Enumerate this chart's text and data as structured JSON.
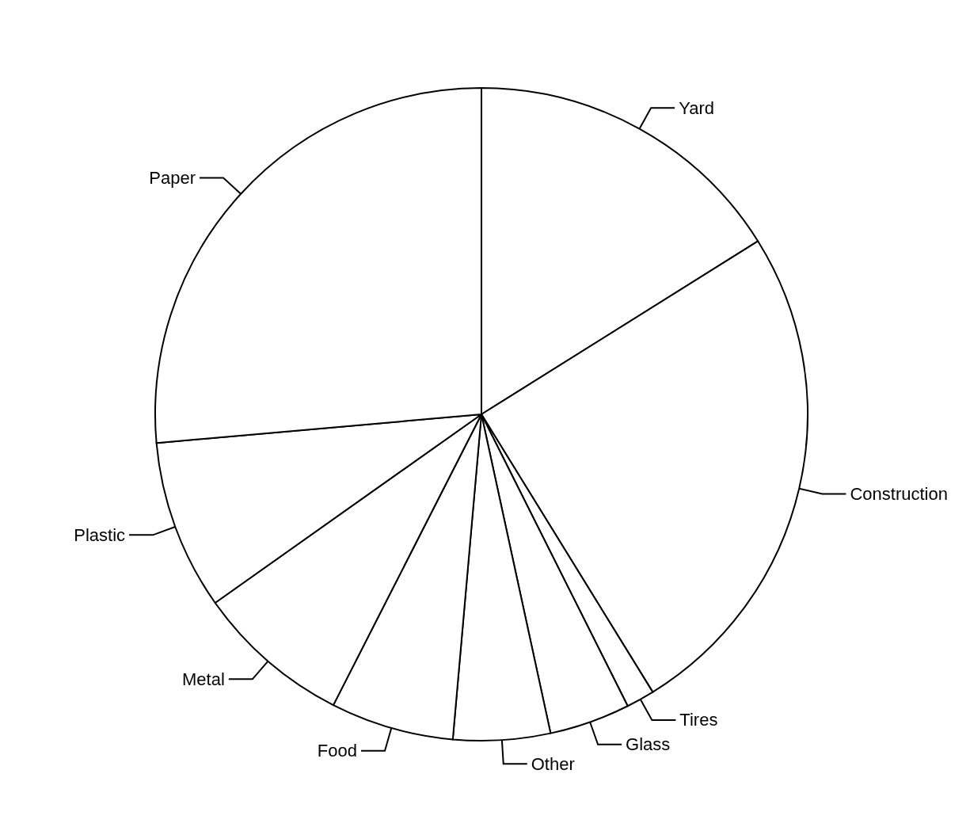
{
  "chart_data": {
    "type": "pie",
    "categories": [
      "Yard",
      "Construction",
      "Tires",
      "Glass",
      "Other",
      "Food",
      "Metal",
      "Plastic",
      "Paper"
    ],
    "values": [
      16.1,
      25.1,
      1.4,
      4.0,
      4.8,
      6.1,
      7.7,
      8.4,
      26.4
    ],
    "colors": [
      "#ffffff",
      "#ffffff",
      "#ffffff",
      "#ffffff",
      "#ffffff",
      "#ffffff",
      "#ffffff",
      "#ffffff",
      "#ffffff"
    ]
  }
}
